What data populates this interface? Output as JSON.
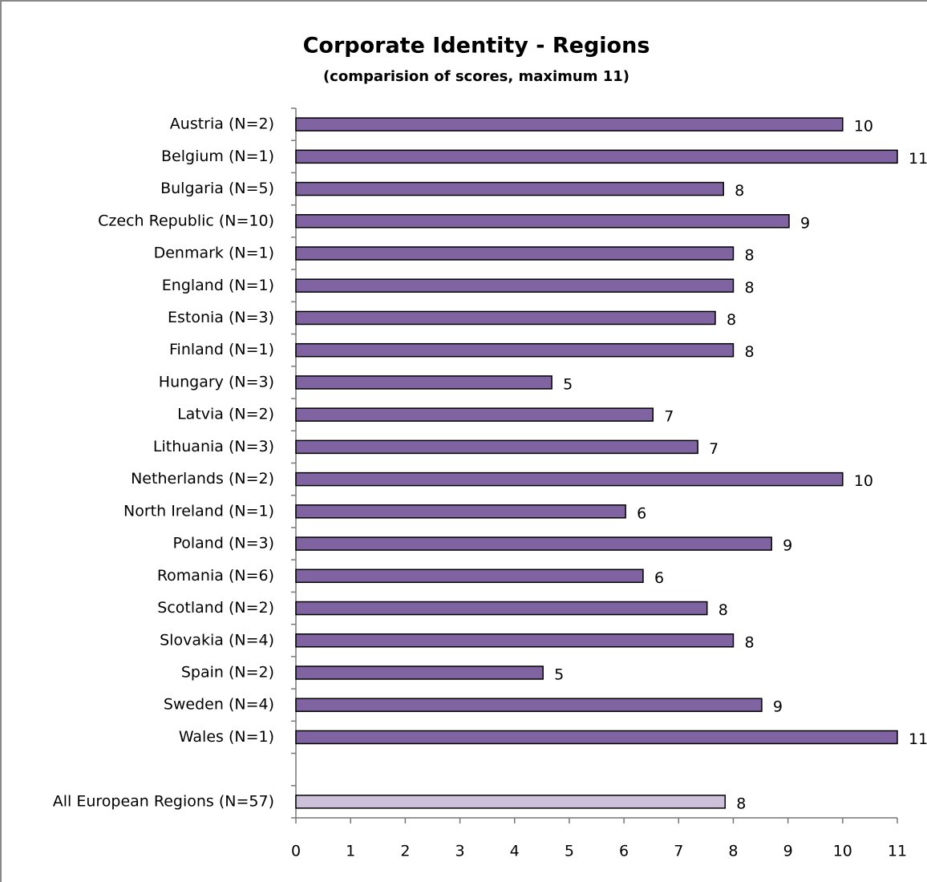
{
  "chart_data": {
    "type": "barh",
    "title": "Corporate Identity - Regions",
    "subtitle": "(comparision of scores, maximum 11)",
    "categories": [
      "Austria (N=2)",
      "Belgium (N=1)",
      "Bulgaria (N=5)",
      "Czech Republic (N=10)",
      "Denmark (N=1)",
      "England (N=1)",
      "Estonia (N=3)",
      "Finland (N=1)",
      "Hungary (N=3)",
      "Latvia (N=2)",
      "Lithuania (N=3)",
      "Netherlands (N=2)",
      "North Ireland (N=1)",
      "Poland (N=3)",
      "Romania (N=6)",
      "Scotland (N=2)",
      "Slovakia (N=4)",
      "Spain (N=2)",
      "Sweden (N=4)",
      "Wales (N=1)",
      null,
      "All European Regions (N=57)"
    ],
    "values": [
      10,
      11,
      7.82,
      9.02,
      8,
      8,
      7.67,
      8,
      4.68,
      6.53,
      7.35,
      10,
      6.03,
      8.7,
      6.35,
      7.52,
      8,
      4.52,
      8.52,
      11,
      null,
      7.85
    ],
    "value_labels": [
      "10",
      "11",
      "8",
      "9",
      "8",
      "8",
      "8",
      "8",
      "5",
      "7",
      "7",
      "10",
      "6",
      "9",
      "6",
      "8",
      "8",
      "5",
      "9",
      "11",
      null,
      "8"
    ],
    "colors": [
      "#8064a2",
      "#8064a2",
      "#8064a2",
      "#8064a2",
      "#8064a2",
      "#8064a2",
      "#8064a2",
      "#8064a2",
      "#8064a2",
      "#8064a2",
      "#8064a2",
      "#8064a2",
      "#8064a2",
      "#8064a2",
      "#8064a2",
      "#8064a2",
      "#8064a2",
      "#8064a2",
      "#8064a2",
      "#8064a2",
      null,
      "#ccc0da"
    ],
    "xlim": [
      0,
      11
    ],
    "xticks": [
      0,
      1,
      2,
      3,
      4,
      5,
      6,
      7,
      8,
      9,
      10,
      11
    ],
    "grid": false
  }
}
